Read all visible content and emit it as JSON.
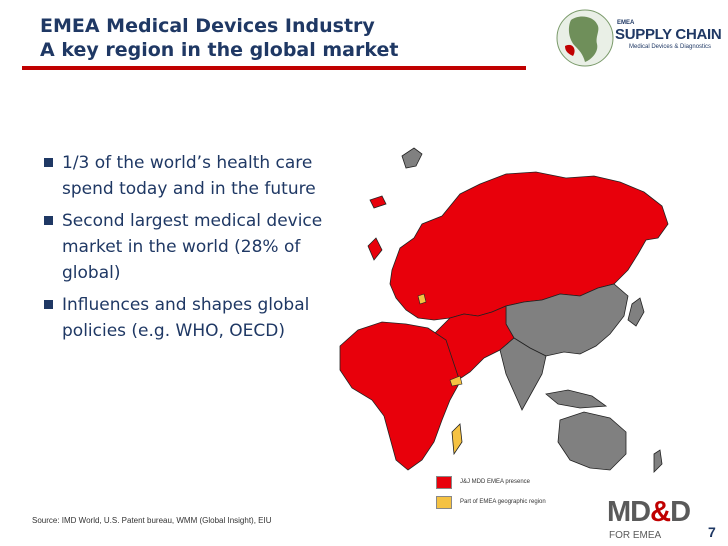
{
  "slide": {
    "title_line1": "EMEA Medical Devices Industry",
    "title_line2": "A key region in the global market",
    "page_number": "7"
  },
  "logo": {
    "icon": "globe-icon",
    "emea": "EMEA",
    "supply_chain": "SUPPLY CHAIN",
    "subtitle": "Medical Devices & Diagnostics"
  },
  "bullets": [
    "1/3 of the world’s health care spend today and in the future",
    "Second largest medical device market in the world (28% of global)",
    "Influences and shapes global policies (e.g. WHO, OECD)"
  ],
  "legend": [
    {
      "label": "J&J MDD EMEA presence",
      "color": "#e8000b"
    },
    {
      "label": "Part of EMEA geographic region",
      "color": "#f5c242"
    }
  ],
  "source": "Source: IMD World, U.S. Patent bureau, WMM (Global Insight), EIU",
  "brand": {
    "md": "MD",
    "amp": "&",
    "d": "D",
    "for": "FOR EMEA"
  },
  "colors": {
    "title": "#1f3864",
    "accent_red": "#c00000",
    "map_red": "#e8000b",
    "map_grey": "#808080",
    "map_yellow": "#f5c242"
  }
}
